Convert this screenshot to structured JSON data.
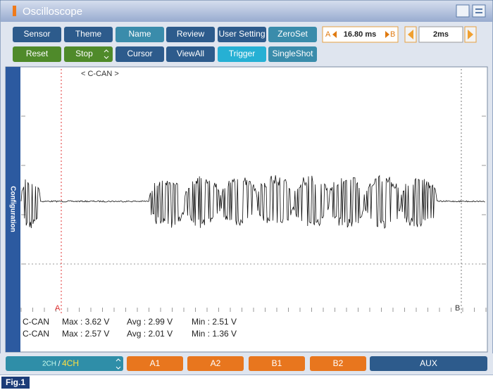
{
  "title": "Oscilloscope",
  "toolbar": {
    "row1": [
      "Sensor",
      "Theme",
      "Name",
      "Review",
      "User Setting",
      "ZeroSet"
    ],
    "row2": [
      "Reset",
      "Stop",
      "Cursor",
      "ViewAll",
      "Trigger",
      "SingleShot"
    ]
  },
  "cursor_time": {
    "left": "A",
    "value": "16.80 ms",
    "right": "B"
  },
  "time_div": "2ms",
  "side_tab": "Configuration",
  "plot": {
    "channel_label": "< C-CAN >",
    "cursor_a": "A",
    "cursor_b": "B"
  },
  "measurements": [
    {
      "channel": "C-CAN",
      "max": "Max  :  3.62 V",
      "avg": "Avg  :  2.99 V",
      "min": "Min  :  2.51 V"
    },
    {
      "channel": "C-CAN",
      "max": "Max  :  2.57 V",
      "avg": "Avg  :  2.01 V",
      "min": "Min  :  1.36 V"
    }
  ],
  "bottom_bar": {
    "ch2": "2CH",
    "sep": "/",
    "ch4": "4CH",
    "buttons": [
      "A1",
      "A2",
      "B1",
      "B2",
      "AUX"
    ]
  },
  "figure_label": "Fig.1"
}
